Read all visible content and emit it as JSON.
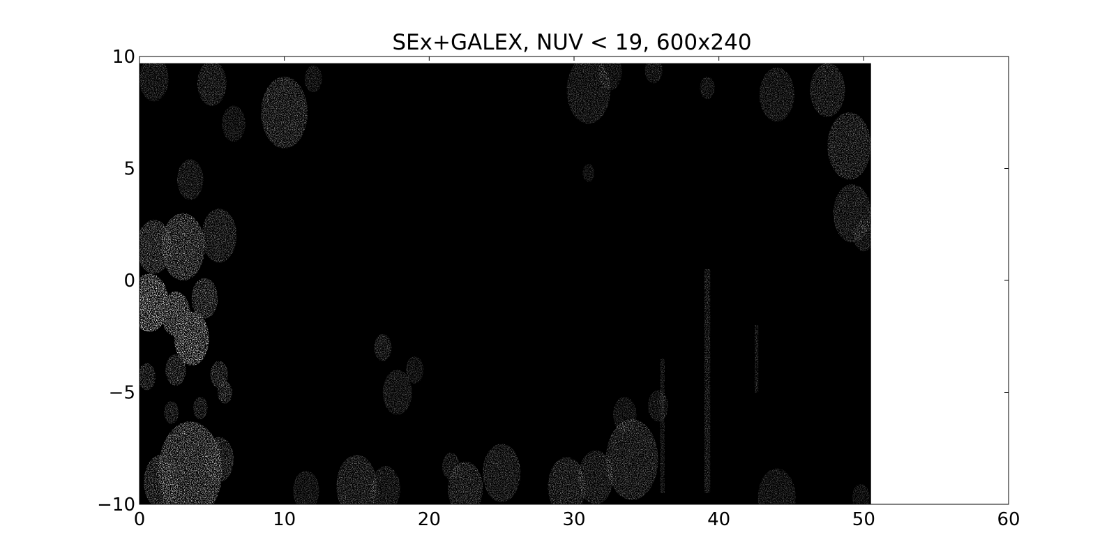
{
  "chart_data": {
    "type": "heatmap",
    "title": "SEx+GALEX, NUV < 19, 600x240",
    "xlabel": "",
    "ylabel": "",
    "xlim": [
      0,
      60
    ],
    "ylim": [
      -10,
      10
    ],
    "xticks": [
      0,
      10,
      20,
      30,
      40,
      50,
      60
    ],
    "yticks": [
      -10,
      -5,
      0,
      5,
      10
    ],
    "xtick_labels": [
      "0",
      "10",
      "20",
      "30",
      "40",
      "50",
      "60"
    ],
    "ytick_labels": [
      "−10",
      "−5",
      "0",
      "5",
      "10"
    ],
    "image_extent": {
      "x": [
        0,
        50.5
      ],
      "y": [
        -10,
        9.7
      ]
    },
    "colormap": "gray",
    "background_color": "#000000",
    "grid": false,
    "legend": "none",
    "bright_regions": [
      {
        "x": 0.7,
        "y": -1.0,
        "r": 1.3,
        "i": 1.0
      },
      {
        "x": 2.5,
        "y": -1.5,
        "r": 1.0,
        "i": 0.9
      },
      {
        "x": 3.6,
        "y": -2.6,
        "r": 1.2,
        "i": 0.95
      },
      {
        "x": 3.0,
        "y": 1.5,
        "r": 1.5,
        "i": 0.7
      },
      {
        "x": 5.5,
        "y": 2.0,
        "r": 1.2,
        "i": 0.45
      },
      {
        "x": 1.0,
        "y": 1.5,
        "r": 1.2,
        "i": 0.6
      },
      {
        "x": 4.5,
        "y": -0.8,
        "r": 0.9,
        "i": 0.6
      },
      {
        "x": 2.5,
        "y": -4.0,
        "r": 0.7,
        "i": 0.5
      },
      {
        "x": 5.5,
        "y": -4.2,
        "r": 0.6,
        "i": 0.5
      },
      {
        "x": 5.9,
        "y": -5.0,
        "r": 0.5,
        "i": 0.5
      },
      {
        "x": 0.5,
        "y": -4.3,
        "r": 0.6,
        "i": 0.45
      },
      {
        "x": 2.2,
        "y": -5.9,
        "r": 0.5,
        "i": 0.4
      },
      {
        "x": 4.2,
        "y": -5.7,
        "r": 0.5,
        "i": 0.4
      },
      {
        "x": 3.5,
        "y": 4.5,
        "r": 0.9,
        "i": 0.35
      },
      {
        "x": 1.0,
        "y": 9.0,
        "r": 1.0,
        "i": 0.35
      },
      {
        "x": 5.0,
        "y": 8.8,
        "r": 1.0,
        "i": 0.4
      },
      {
        "x": 6.5,
        "y": 7.0,
        "r": 0.8,
        "i": 0.3
      },
      {
        "x": 10.0,
        "y": 7.5,
        "r": 1.6,
        "i": 0.5
      },
      {
        "x": 12.0,
        "y": 9.0,
        "r": 0.6,
        "i": 0.3
      },
      {
        "x": 3.5,
        "y": -8.5,
        "r": 2.2,
        "i": 0.75
      },
      {
        "x": 5.5,
        "y": -8.0,
        "r": 1.0,
        "i": 0.5
      },
      {
        "x": 1.5,
        "y": -9.0,
        "r": 1.2,
        "i": 0.55
      },
      {
        "x": 11.5,
        "y": -9.4,
        "r": 0.9,
        "i": 0.3
      },
      {
        "x": 15.0,
        "y": -9.2,
        "r": 1.4,
        "i": 0.45
      },
      {
        "x": 17.0,
        "y": -9.3,
        "r": 1.0,
        "i": 0.35
      },
      {
        "x": 16.8,
        "y": -3.0,
        "r": 0.6,
        "i": 0.4
      },
      {
        "x": 17.8,
        "y": -5.0,
        "r": 1.0,
        "i": 0.35
      },
      {
        "x": 19.0,
        "y": -4.0,
        "r": 0.6,
        "i": 0.3
      },
      {
        "x": 22.5,
        "y": -9.3,
        "r": 1.2,
        "i": 0.45
      },
      {
        "x": 25.0,
        "y": -8.6,
        "r": 1.3,
        "i": 0.4
      },
      {
        "x": 21.5,
        "y": -8.3,
        "r": 0.6,
        "i": 0.35
      },
      {
        "x": 29.5,
        "y": -9.2,
        "r": 1.3,
        "i": 0.45
      },
      {
        "x": 31.5,
        "y": -8.8,
        "r": 1.2,
        "i": 0.4
      },
      {
        "x": 34.0,
        "y": -8.0,
        "r": 1.8,
        "i": 0.45
      },
      {
        "x": 33.5,
        "y": -6.0,
        "r": 0.8,
        "i": 0.3
      },
      {
        "x": 35.8,
        "y": -5.6,
        "r": 0.7,
        "i": 0.3
      },
      {
        "x": 31.0,
        "y": 8.5,
        "r": 1.5,
        "i": 0.35
      },
      {
        "x": 32.5,
        "y": 9.3,
        "r": 0.8,
        "i": 0.3
      },
      {
        "x": 35.5,
        "y": 9.4,
        "r": 0.6,
        "i": 0.3
      },
      {
        "x": 31.0,
        "y": 4.8,
        "r": 0.4,
        "i": 0.25
      },
      {
        "x": 39.2,
        "y": 8.6,
        "r": 0.5,
        "i": 0.3
      },
      {
        "x": 44.0,
        "y": 8.3,
        "r": 1.2,
        "i": 0.35
      },
      {
        "x": 47.5,
        "y": 8.5,
        "r": 1.2,
        "i": 0.4
      },
      {
        "x": 49.0,
        "y": 6.0,
        "r": 1.5,
        "i": 0.45
      },
      {
        "x": 49.2,
        "y": 3.0,
        "r": 1.3,
        "i": 0.4
      },
      {
        "x": 50.0,
        "y": 2.0,
        "r": 0.7,
        "i": 0.35
      },
      {
        "x": 44.0,
        "y": -9.7,
        "r": 1.3,
        "i": 0.3
      },
      {
        "x": 49.8,
        "y": -9.7,
        "r": 0.6,
        "i": 0.25
      }
    ],
    "vertical_streaks": [
      {
        "x": 39.2,
        "y0": -9.5,
        "y1": 0.5,
        "w": 0.4,
        "i": 0.35
      },
      {
        "x": 42.6,
        "y0": -5.0,
        "y1": -2.0,
        "w": 0.25,
        "i": 0.3
      },
      {
        "x": 36.1,
        "y0": -9.5,
        "y1": -3.5,
        "w": 0.3,
        "i": 0.3
      }
    ]
  }
}
